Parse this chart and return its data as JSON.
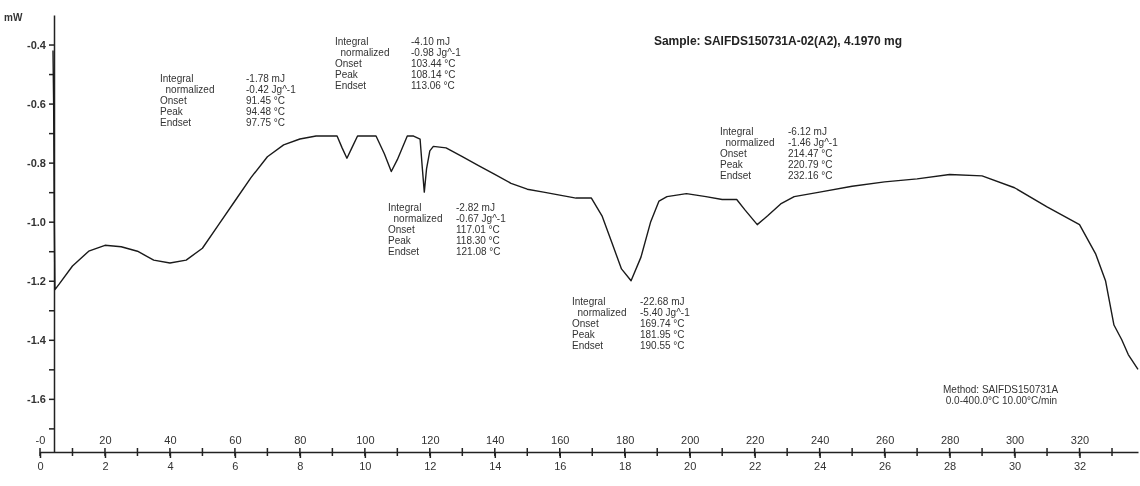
{
  "chart_data": {
    "type": "line",
    "title": "Sample: SAIFDS150731A-02(A2), 4.1970 mg",
    "ylabel": "mW",
    "x": [
      4.0,
      4.2,
      4.4,
      4.6,
      6,
      10,
      15,
      20,
      25,
      30,
      35,
      40,
      45,
      50,
      55,
      60,
      65,
      70,
      75,
      80,
      85,
      91.45,
      93,
      94.48,
      96,
      97.75,
      100,
      103.44,
      106,
      108.14,
      110,
      113.06,
      115,
      117,
      117.7,
      118.3,
      119,
      120,
      121.08,
      125,
      130,
      135,
      140,
      145,
      150,
      155,
      160,
      165,
      169.74,
      173,
      176,
      179,
      181.95,
      185,
      188,
      190.55,
      193,
      196,
      199,
      205,
      210,
      214.47,
      217,
      220.79,
      224,
      228,
      232.16,
      240,
      250,
      260,
      270,
      280,
      290,
      300,
      310,
      320,
      325,
      328,
      330.6,
      333,
      335,
      338
    ],
    "series": [
      {
        "color": "#1a1a1a",
        "values": [
          -0.42,
          -0.6,
          -1.0,
          -1.23,
          -1.21,
          -1.15,
          -1.1,
          -1.08,
          -1.085,
          -1.1,
          -1.13,
          -1.14,
          -1.13,
          -1.09,
          -1.01,
          -0.93,
          -0.85,
          -0.78,
          -0.74,
          -0.72,
          -0.71,
          -0.71,
          -0.75,
          -0.785,
          -0.75,
          -0.71,
          -0.71,
          -0.71,
          -0.77,
          -0.83,
          -0.79,
          -0.71,
          -0.71,
          -0.72,
          -0.82,
          -0.9,
          -0.82,
          -0.76,
          -0.745,
          -0.75,
          -0.78,
          -0.81,
          -0.84,
          -0.87,
          -0.89,
          -0.9,
          -0.91,
          -0.92,
          -0.92,
          -0.98,
          -1.07,
          -1.16,
          -1.2,
          -1.12,
          -1.0,
          -0.93,
          -0.915,
          -0.91,
          -0.905,
          -0.915,
          -0.925,
          -0.925,
          -0.96,
          -1.01,
          -0.98,
          -0.94,
          -0.915,
          -0.9,
          -0.88,
          -0.865,
          -0.855,
          -0.84,
          -0.845,
          -0.885,
          -0.95,
          -1.01,
          -1.11,
          -1.2,
          -1.35,
          -1.4,
          -1.45,
          -1.5
        ]
      }
    ],
    "xlim": [
      0,
      338
    ],
    "xticks": [
      {
        "value": 0,
        "label": "-0"
      },
      {
        "value": 10,
        "label": null
      },
      20,
      {
        "value": 30,
        "label": null
      },
      40,
      {
        "value": 50,
        "label": null
      },
      60,
      {
        "value": 70,
        "label": null
      },
      80,
      {
        "value": 90,
        "label": null
      },
      100,
      {
        "value": 110,
        "label": null
      },
      120,
      {
        "value": 130,
        "label": null
      },
      140,
      {
        "value": 150,
        "label": null
      },
      160,
      {
        "value": 170,
        "label": null
      },
      180,
      {
        "value": 190,
        "label": null
      },
      200,
      {
        "value": 210,
        "label": null
      },
      220,
      {
        "value": 230,
        "label": null
      },
      240,
      {
        "value": 250,
        "label": null
      },
      260,
      {
        "value": 270,
        "label": null
      },
      280,
      {
        "value": 290,
        "label": null
      },
      300,
      {
        "value": 310,
        "label": null
      },
      320,
      {
        "value": 330,
        "label": null
      }
    ],
    "x2lim": [
      0,
      33.8
    ],
    "x2ticks": [
      0,
      2,
      4,
      6,
      8,
      10,
      12,
      14,
      16,
      18,
      20,
      22,
      24,
      26,
      28,
      30,
      32
    ],
    "ylim": [
      -1.78,
      -0.3
    ],
    "yticks": [
      -0.4,
      {
        "value": -0.5,
        "label": null
      },
      -0.6,
      {
        "value": -0.7,
        "label": null
      },
      -0.8,
      {
        "value": -0.9,
        "label": null
      },
      {
        "value": -1.0,
        "label": "-1.0"
      },
      {
        "value": -1.1,
        "label": null
      },
      -1.2,
      {
        "value": -1.3,
        "label": null
      },
      -1.4,
      {
        "value": -1.5,
        "label": null
      },
      -1.6,
      {
        "value": -1.7,
        "label": null
      }
    ],
    "grid": false,
    "marker": "none",
    "line_style": "solid",
    "annotations": [
      "Integral\t-1.78 mJ\n  normalized\t-0.42 Jg^-1\nOnset\t91.45 °C\nPeak\t94.48 °C\nEndset\t97.75 °C",
      "Integral\t-4.10 mJ\n  normalized\t-0.98 Jg^-1\nOnset\t103.44 °C\nPeak\t108.14 °C\nEndset\t113.06 °C",
      "Integral\t-2.82 mJ\n  normalized\t-0.67 Jg^-1\nOnset\t117.01 °C\nPeak\t118.30 °C\nEndset\t121.08 °C",
      "Integral\t-22.68 mJ\n  normalized\t-5.40 Jg^-1\nOnset\t169.74 °C\nPeak\t181.95 °C\nEndset\t190.55 °C",
      "Integral\t-6.12 mJ\n  normalized\t-1.46 Jg^-1\nOnset\t214.47 °C\nPeak\t220.79 °C\nEndset\t232.16 °C",
      "Method: SAIFDS150731A\n 0.0-400.0°C 10.00°C/min"
    ]
  }
}
